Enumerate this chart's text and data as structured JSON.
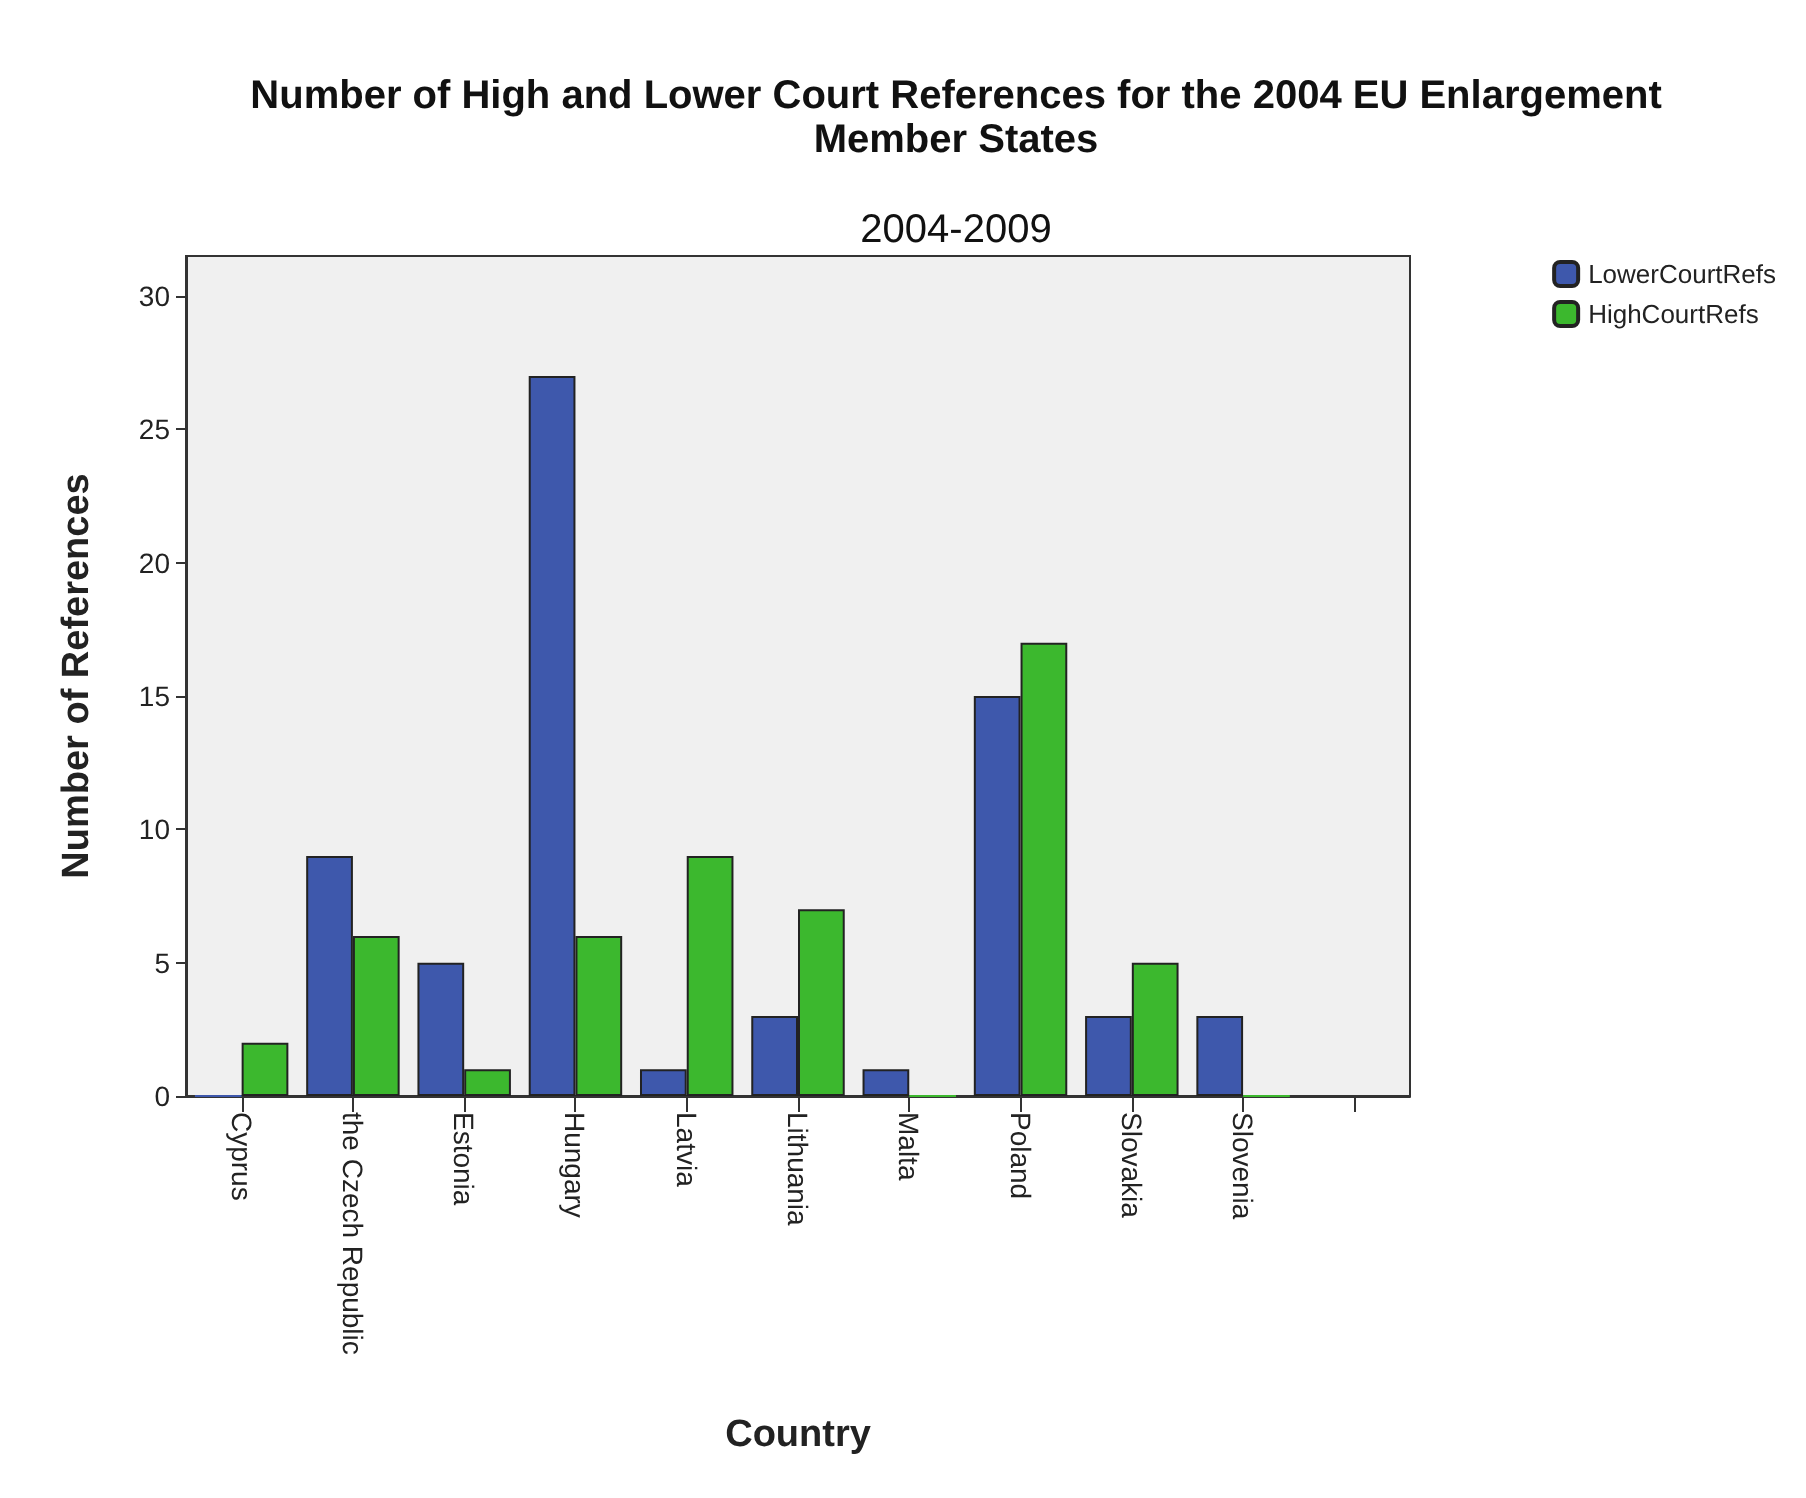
{
  "chart_data": {
    "type": "bar",
    "title": "Number of High and Lower Court References for the 2004 EU Enlargement\nMember States",
    "subtitle": "2004-2009",
    "xlabel": "Country",
    "ylabel": "Number of References",
    "categories": [
      "Cyprus",
      "the Czech Republic",
      "Estonia",
      "Hungary",
      "Latvia",
      "Lithuania",
      "Malta",
      "Poland",
      "Slovakia",
      "Slovenia",
      null
    ],
    "series": [
      {
        "name": "LowerCourtRefs",
        "color": "#3e58ac",
        "values": [
          0,
          9,
          5,
          27,
          1,
          3,
          1,
          15,
          3,
          3,
          null
        ]
      },
      {
        "name": "HighCourtRefs",
        "color": "#3cb82e",
        "values": [
          2,
          6,
          1,
          6,
          9,
          7,
          0,
          17,
          5,
          0,
          null
        ]
      }
    ],
    "ylim": [
      0,
      31.5
    ],
    "yticks": [
      0,
      5,
      10,
      15,
      20,
      25,
      30
    ],
    "grid": false,
    "legend": "top right"
  }
}
